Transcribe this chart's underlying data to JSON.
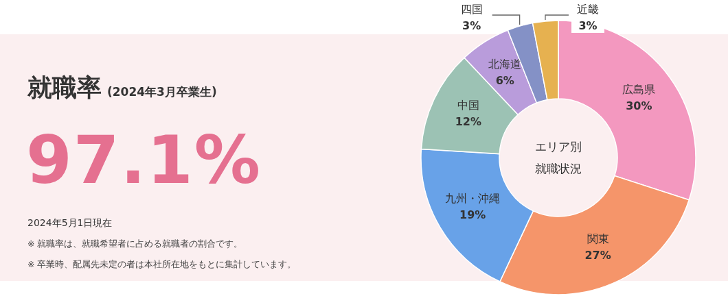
{
  "chart_data": {
    "type": "donut",
    "title": "就職率",
    "subtitle": "(2024年3月卒業生)",
    "categories": [
      "広島県",
      "関東",
      "九州・沖縄",
      "中国",
      "北海道",
      "四国",
      "近畿"
    ],
    "values": [
      30,
      27,
      19,
      12,
      6,
      3,
      3
    ],
    "value_labels": [
      "30%",
      "27%",
      "19%",
      "12%",
      "6%",
      "3%",
      "3%"
    ],
    "colors": [
      "#f398bf",
      "#f5956a",
      "#68a2e8",
      "#9cc2b4",
      "#b99cdb",
      "#8491c6",
      "#e6b150"
    ],
    "annotations": [
      "97.1%",
      "2024年5月1日現在",
      "※ 就職率は、就職希望者に占める就職者の割合です。",
      "※ 卒業時、配属先未定の者は本社所在地をもとに集計しています。",
      "エリア別就職状況"
    ]
  }
}
